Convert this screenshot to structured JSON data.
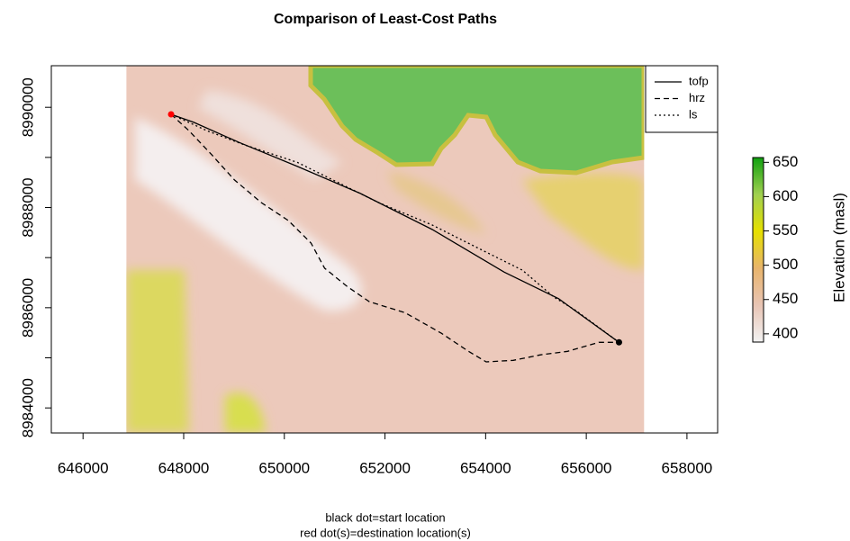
{
  "chart_data": {
    "type": "line",
    "title": "Comparison of Least-Cost Paths",
    "subtitle": [
      "black dot=start location",
      "red dot(s)=destination location(s)"
    ],
    "xlim": [
      645370,
      658610
    ],
    "ylim": [
      8983500,
      8990830
    ],
    "xticks": [
      646000,
      648000,
      650000,
      652000,
      654000,
      656000,
      658000
    ],
    "yticks": [
      8984000,
      8986000,
      8988000,
      8990000
    ],
    "yticks_minor": [
      8985000,
      8987000,
      8989000
    ],
    "raster_xlim": [
      646860,
      657150
    ],
    "series": [
      {
        "name": "tofp",
        "color": "#000000",
        "dash": "solid",
        "x": [
          647750,
          648200,
          649100,
          650260,
          651510,
          652940,
          654370,
          655450,
          656070,
          656650
        ],
        "values": [
          8989860,
          8989700,
          8989300,
          8988820,
          8988280,
          8987560,
          8986710,
          8986180,
          8985730,
          8985310
        ]
      },
      {
        "name": "hrz",
        "color": "#000000",
        "dash": "dashed",
        "x": [
          647750,
          648110,
          648560,
          649010,
          649540,
          650080,
          650530,
          650800,
          651240,
          651690,
          652400,
          653120,
          653660,
          654010,
          654550,
          655090,
          655630,
          656250,
          656650
        ],
        "values": [
          8989860,
          8989530,
          8989050,
          8988550,
          8988100,
          8987740,
          8987290,
          8986790,
          8986430,
          8986120,
          8985900,
          8985490,
          8985130,
          8984920,
          8984950,
          8985060,
          8985130,
          8985310,
          8985310
        ]
      },
      {
        "name": "ls",
        "color": "#000000",
        "dash": "dotted",
        "x": [
          647750,
          648470,
          649180,
          650260,
          651870,
          652940,
          654010,
          654730,
          655360,
          655800,
          656650
        ],
        "values": [
          8989860,
          8989530,
          8989260,
          8988900,
          8988100,
          8987650,
          8987110,
          8986750,
          8986210,
          8985940,
          8985310
        ]
      }
    ],
    "start": {
      "x": 656650,
      "y": 8985310,
      "color": "#000000"
    },
    "destination": {
      "x": 647750,
      "y": 8989860,
      "color": "#ff0000"
    },
    "legend": "top-right",
    "colorbar": {
      "label": "Elevation (masl)",
      "lim": [
        388,
        657
      ],
      "ticks": [
        400,
        450,
        500,
        550,
        600,
        650
      ],
      "colors": [
        "#f2f2f2",
        "#e8c4b4",
        "#e8b46c",
        "#e6e000",
        "#a0d050",
        "#10a010"
      ]
    }
  }
}
